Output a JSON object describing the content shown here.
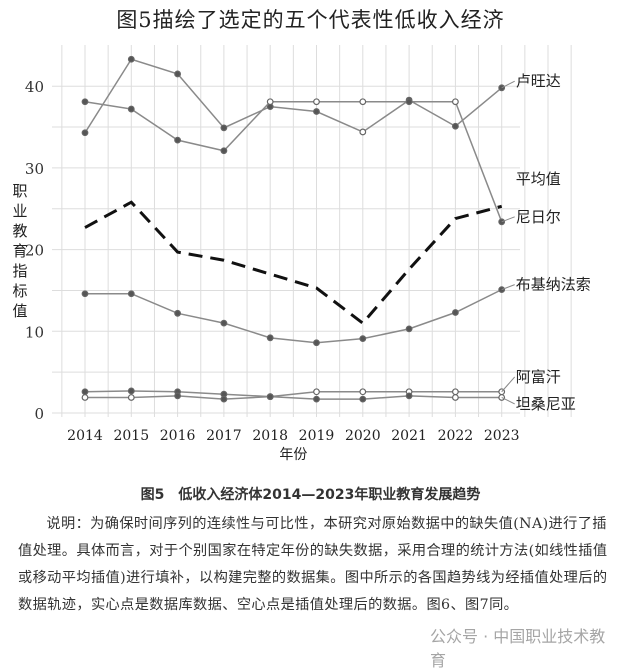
{
  "header": {
    "title": "图5描绘了选定的五个代表性低收入经济"
  },
  "chart_data": {
    "type": "line",
    "title": "图5描绘了选定的五个代表性低收入经济",
    "xlabel": "年份",
    "ylabel": "职业教育指标值",
    "x": [
      2014,
      2015,
      2016,
      2017,
      2018,
      2019,
      2020,
      2021,
      2022,
      2023
    ],
    "yticks": [
      0,
      10,
      20,
      30,
      40
    ],
    "ylim": [
      0,
      44
    ],
    "grid": true,
    "series": [
      {
        "name": "卢旺达",
        "style": "solid",
        "values": [
          34.3,
          43.3,
          41.5,
          34.9,
          37.5,
          36.9,
          34.4,
          38.3,
          35.1,
          39.8
        ],
        "interpolated": [
          false,
          false,
          false,
          false,
          false,
          false,
          true,
          false,
          false,
          false
        ]
      },
      {
        "name": "平均值",
        "style": "dashed",
        "values": [
          22.7,
          25.8,
          19.7,
          18.7,
          17.0,
          15.3,
          11.0,
          17.6,
          23.8,
          25.3
        ]
      },
      {
        "name": "尼日尔",
        "style": "solid",
        "values": [
          38.1,
          37.2,
          33.4,
          32.1,
          38.1,
          38.1,
          38.1,
          38.1,
          38.1,
          23.4
        ],
        "interpolated": [
          false,
          false,
          false,
          false,
          true,
          true,
          true,
          false,
          true,
          false
        ]
      },
      {
        "name": "布基纳法索",
        "style": "solid",
        "values": [
          14.6,
          14.6,
          12.2,
          11.0,
          9.2,
          8.6,
          9.1,
          10.3,
          12.3,
          15.1
        ]
      },
      {
        "name": "阿富汗",
        "style": "solid",
        "values": [
          2.6,
          2.7,
          2.6,
          2.3,
          2.0,
          2.6,
          2.6,
          2.6,
          2.6,
          2.6
        ],
        "interpolated": [
          false,
          false,
          false,
          false,
          false,
          true,
          true,
          true,
          true,
          true
        ]
      },
      {
        "name": "坦桑尼亚",
        "style": "solid",
        "values": [
          1.9,
          1.9,
          2.1,
          1.7,
          2.0,
          1.7,
          1.7,
          2.1,
          1.9,
          1.9
        ],
        "interpolated": [
          true,
          true,
          false,
          false,
          false,
          false,
          false,
          false,
          true,
          true
        ]
      }
    ],
    "legend": "right-end labels",
    "colors": {
      "line": "#8a8a8a",
      "average": "#111111",
      "grid": "#dddddd"
    }
  },
  "caption": "图5　低收入经济体2014—2023年职业教育发展趋势",
  "note": "说明：为确保时间序列的连续性与可比性，本研究对原始数据中的缺失值(NA)进行了插值处理。具体而言，对于个别国家在特定年份的缺失数据，采用合理的统计方法(如线性插值或移动平均插值)进行填补，以构建完整的数据集。图中所示的各国趋势线为经插值处理后的数据轨迹，实心点是数据库数据、空心点是插值处理后的数据。图6、图7同。",
  "watermark": "公众号 · 中国职业技术教育"
}
